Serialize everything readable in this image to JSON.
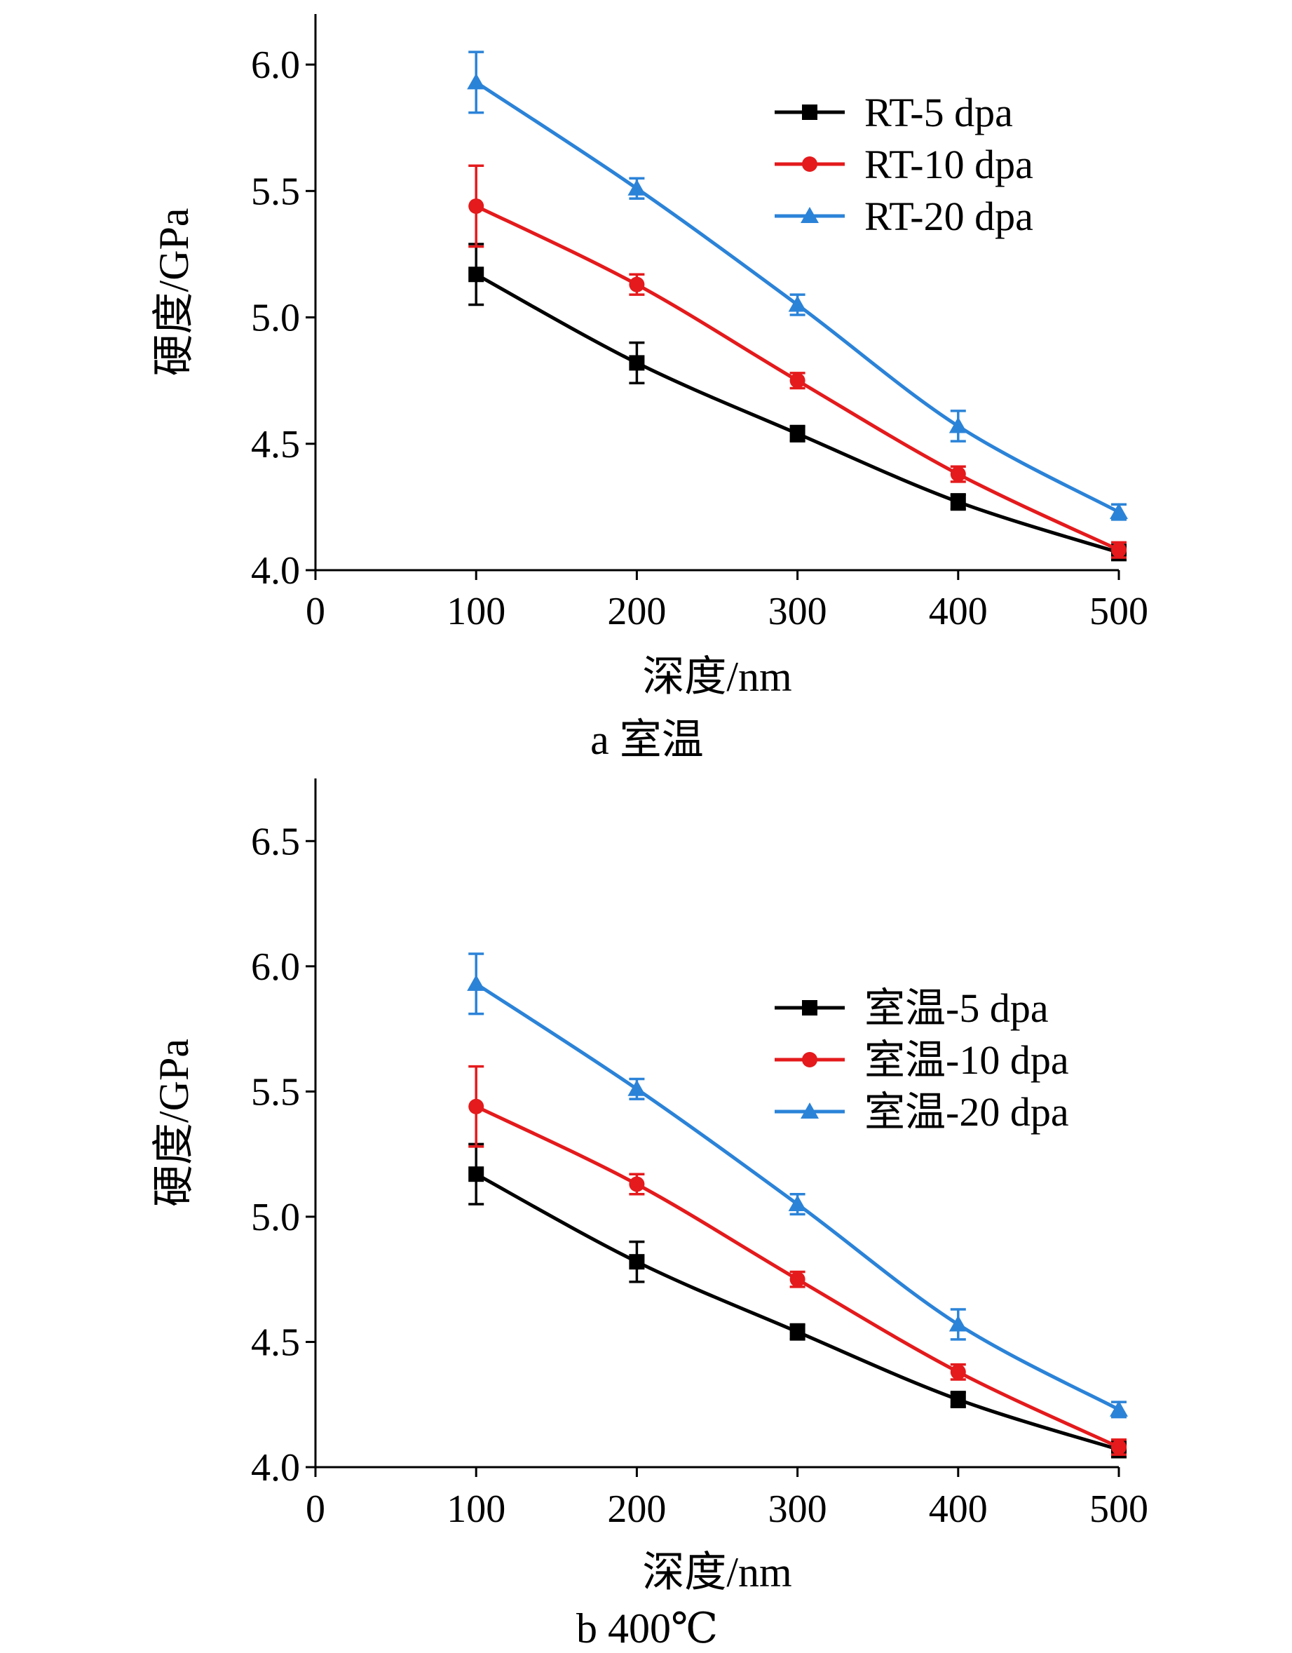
{
  "chart_data": [
    {
      "id": "a",
      "type": "line",
      "caption": "a  室温",
      "xlabel": "深度/nm",
      "ylabel": "硬度/GPa",
      "xlim": [
        0,
        500
      ],
      "ylim": [
        4.0,
        6.2
      ],
      "x_ticks": [
        "0",
        "100",
        "200",
        "300",
        "400",
        "500"
      ],
      "x_tick_values": [
        0,
        100,
        200,
        300,
        400,
        500
      ],
      "y_ticks": [
        "4.0",
        "4.5",
        "5.0",
        "5.5",
        "6.0"
      ],
      "y_tick_values": [
        4.0,
        4.5,
        5.0,
        5.5,
        6.0
      ],
      "legend_position": "top-right",
      "x": [
        100,
        200,
        300,
        400,
        500
      ],
      "series": [
        {
          "name": "RT-5 dpa",
          "marker": "square",
          "color": "#000000",
          "values": [
            5.17,
            4.82,
            4.54,
            4.27,
            4.07
          ],
          "errors": [
            0.12,
            0.08,
            0.03,
            0.03,
            0.03
          ]
        },
        {
          "name": "RT-10 dpa",
          "marker": "circle",
          "color": "#e41a1c",
          "values": [
            5.44,
            5.13,
            4.75,
            4.38,
            4.08
          ],
          "errors": [
            0.16,
            0.04,
            0.03,
            0.03,
            0.03
          ]
        },
        {
          "name": "RT-20 dpa",
          "marker": "triangle",
          "color": "#2b83d8",
          "values": [
            5.93,
            5.51,
            5.05,
            4.57,
            4.23
          ],
          "errors": [
            0.12,
            0.04,
            0.04,
            0.06,
            0.03
          ]
        }
      ]
    },
    {
      "id": "b",
      "type": "line",
      "caption": "b  400℃",
      "xlabel": "深度/nm",
      "ylabel": "硬度/GPa",
      "xlim": [
        0,
        500
      ],
      "ylim": [
        4.0,
        6.75
      ],
      "x_ticks": [
        "0",
        "100",
        "200",
        "300",
        "400",
        "500"
      ],
      "x_tick_values": [
        0,
        100,
        200,
        300,
        400,
        500
      ],
      "y_ticks": [
        "4.0",
        "4.5",
        "5.0",
        "5.5",
        "6.0",
        "6.5"
      ],
      "y_tick_values": [
        4.0,
        4.5,
        5.0,
        5.5,
        6.0,
        6.5
      ],
      "legend_position": "top-right",
      "x": [
        100,
        200,
        300,
        400,
        500
      ],
      "series": [
        {
          "name": "室温-5 dpa",
          "marker": "square",
          "color": "#000000",
          "values": [
            5.17,
            4.82,
            4.54,
            4.27,
            4.07
          ],
          "errors": [
            0.12,
            0.08,
            0.03,
            0.03,
            0.03
          ]
        },
        {
          "name": "室温-10 dpa",
          "marker": "circle",
          "color": "#e41a1c",
          "values": [
            5.44,
            5.13,
            4.75,
            4.38,
            4.08
          ],
          "errors": [
            0.16,
            0.04,
            0.03,
            0.03,
            0.03
          ]
        },
        {
          "name": "室温-20 dpa",
          "marker": "triangle",
          "color": "#2b83d8",
          "values": [
            5.93,
            5.51,
            5.05,
            4.57,
            4.23
          ],
          "errors": [
            0.12,
            0.04,
            0.04,
            0.06,
            0.03
          ]
        }
      ]
    }
  ]
}
